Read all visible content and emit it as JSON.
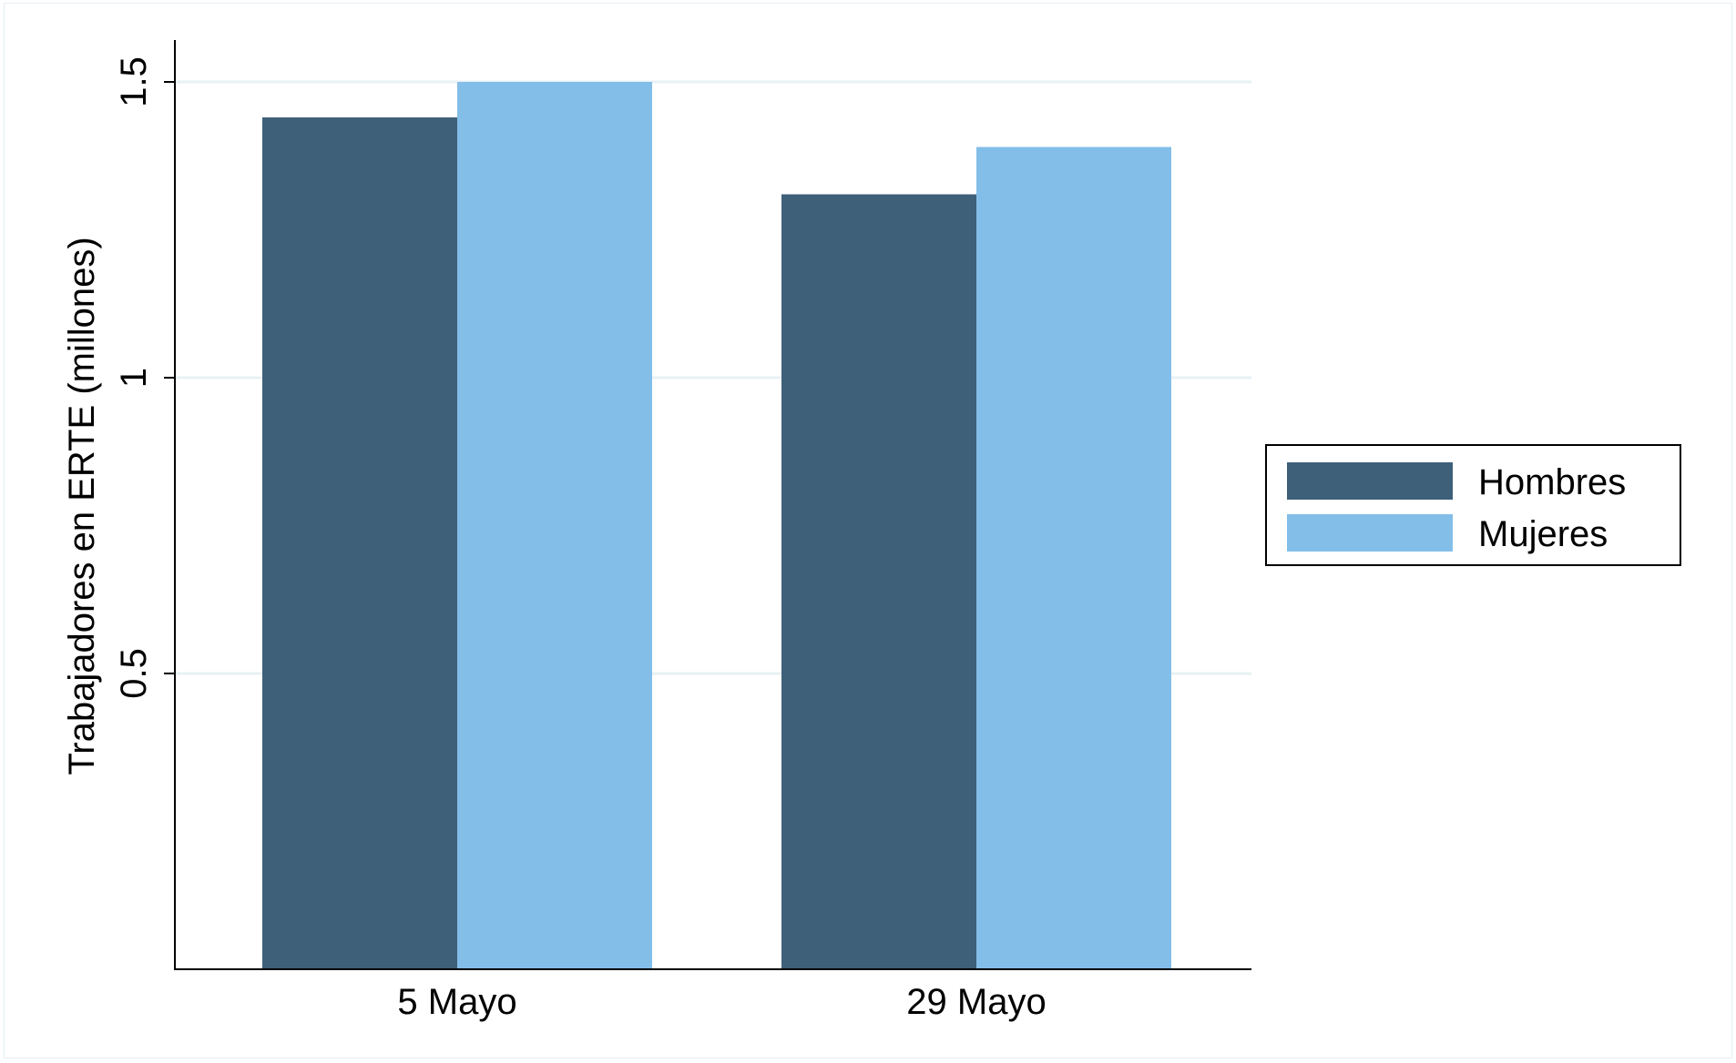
{
  "chart_data": {
    "type": "bar",
    "title": "",
    "xlabel": "",
    "ylabel": "Trabajadores en ERTE (millones)",
    "categories": [
      "5 Mayo",
      "29 Mayo"
    ],
    "series": [
      {
        "name": "Hombres",
        "values": [
          1.44,
          1.31
        ],
        "color": "#3e6079"
      },
      {
        "name": "Mujeres",
        "values": [
          1.5,
          1.39
        ],
        "color": "#83bee9"
      }
    ],
    "ylim": [
      0,
      1.5
    ],
    "yticks": [
      0.5,
      1,
      1.5
    ],
    "ytick_labels": [
      "0.5",
      "1",
      "1.5"
    ],
    "grid": true,
    "grid_color": "#e8f1f4",
    "legend_position": "right"
  }
}
